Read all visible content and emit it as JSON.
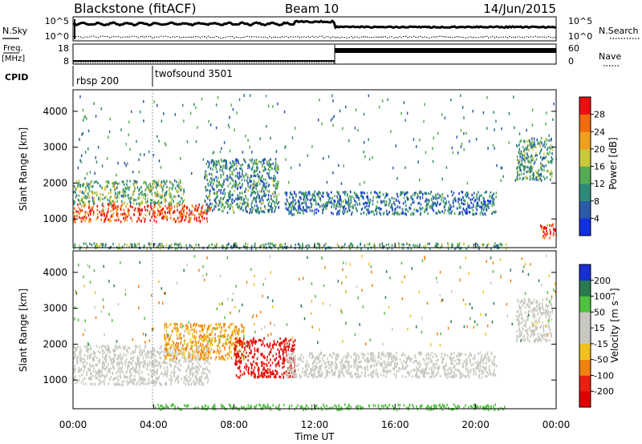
{
  "header": {
    "station": "Blackstone (fitACF)",
    "beam": "Beam 10",
    "date": "14/Jun/2015"
  },
  "noise_panel": {
    "left_label": "N.Sky",
    "right_label": "N.Search",
    "left_ticks": [
      "10^5",
      "10^0"
    ],
    "right_ticks": [
      "10^5",
      "10^0"
    ]
  },
  "freq_panel": {
    "left_label_1": "Freq.",
    "left_label_2": "[MHz]",
    "right_label": "Nave",
    "left_ticks": [
      "18",
      "8"
    ],
    "right_ticks": [
      "60",
      "0"
    ],
    "freq_level": [
      {
        "t0": 0.0,
        "t1": 13.0,
        "value": 10
      },
      {
        "t0": 13.0,
        "t1": 24.0,
        "value": 16
      }
    ]
  },
  "cpid": {
    "label": "CPID",
    "programs": [
      {
        "name": "rbsp 200",
        "start_hour": 0.0
      },
      {
        "name": "twofsound 3501",
        "start_hour": 4.0
      }
    ]
  },
  "time_axis": {
    "label": "Time UT",
    "ticks": [
      "00:00",
      "04:00",
      "08:00",
      "12:00",
      "16:00",
      "20:00",
      "00:00"
    ],
    "range_hours": [
      0,
      24
    ]
  },
  "chart_data": [
    {
      "type": "heatmap",
      "name": "power",
      "ylabel": "Slant Range [km]",
      "ylim": [
        200,
        4600
      ],
      "yticks": [
        "1000",
        "2000",
        "3000",
        "4000"
      ],
      "colorbar_label": "Power [dB]",
      "colorbar_ticks": [
        "4",
        "8",
        "12",
        "16",
        "20",
        "24",
        "28"
      ],
      "colorbar_colors": [
        "#1030e0",
        "#2a5aa8",
        "#2e8a78",
        "#55aa55",
        "#c8c83c",
        "#f0a020",
        "#f06a10",
        "#e81010"
      ],
      "regions": [
        {
          "t0": 0.0,
          "t1": 6.8,
          "r0": 950,
          "r1": 1450,
          "level": 28
        },
        {
          "t0": 0.0,
          "t1": 5.5,
          "r0": 1450,
          "r1": 2100,
          "level": 14
        },
        {
          "t0": 6.5,
          "t1": 10.2,
          "r0": 1200,
          "r1": 2700,
          "level": 10
        },
        {
          "t0": 10.5,
          "t1": 21.0,
          "r0": 1150,
          "r1": 1800,
          "level": 8
        },
        {
          "t0": 22.0,
          "t1": 23.8,
          "r0": 2100,
          "r1": 3300,
          "level": 12
        },
        {
          "t0": 23.2,
          "t1": 24.0,
          "r0": 500,
          "r1": 900,
          "level": 28
        },
        {
          "t0": 0.0,
          "t1": 21.5,
          "r0": 200,
          "r1": 350,
          "level": 12
        }
      ]
    },
    {
      "type": "heatmap",
      "name": "velocity",
      "ylabel": "Slant Range [km]",
      "ylim": [
        200,
        4600
      ],
      "yticks": [
        "1000",
        "2000",
        "3000",
        "4000"
      ],
      "colorbar_label": "Velocity [m s⁻¹]",
      "colorbar_ticks": [
        "200",
        "100",
        "50",
        "15",
        "-15",
        "-50",
        "-100",
        "-200"
      ],
      "colorbar_colors": [
        "#1a2fd0",
        "#2a7a50",
        "#50c040",
        "#c8c8c0",
        "#c8c8c0",
        "#f0c020",
        "#f08010",
        "#e82010",
        "#e00000"
      ],
      "regions": [
        {
          "t0": 0.0,
          "t1": 6.8,
          "r0": 900,
          "r1": 2000,
          "level": 0
        },
        {
          "t0": 4.5,
          "t1": 8.5,
          "r0": 1600,
          "r1": 2600,
          "level": -50
        },
        {
          "t0": 8.0,
          "t1": 11.0,
          "r0": 1100,
          "r1": 2200,
          "level": -150
        },
        {
          "t0": 10.5,
          "t1": 21.0,
          "r0": 1100,
          "r1": 1800,
          "level": 0
        },
        {
          "t0": 22.0,
          "t1": 23.8,
          "r0": 2100,
          "r1": 3300,
          "level": 0
        },
        {
          "t0": 4.0,
          "t1": 21.5,
          "r0": 200,
          "r1": 350,
          "level": 60
        }
      ]
    }
  ]
}
